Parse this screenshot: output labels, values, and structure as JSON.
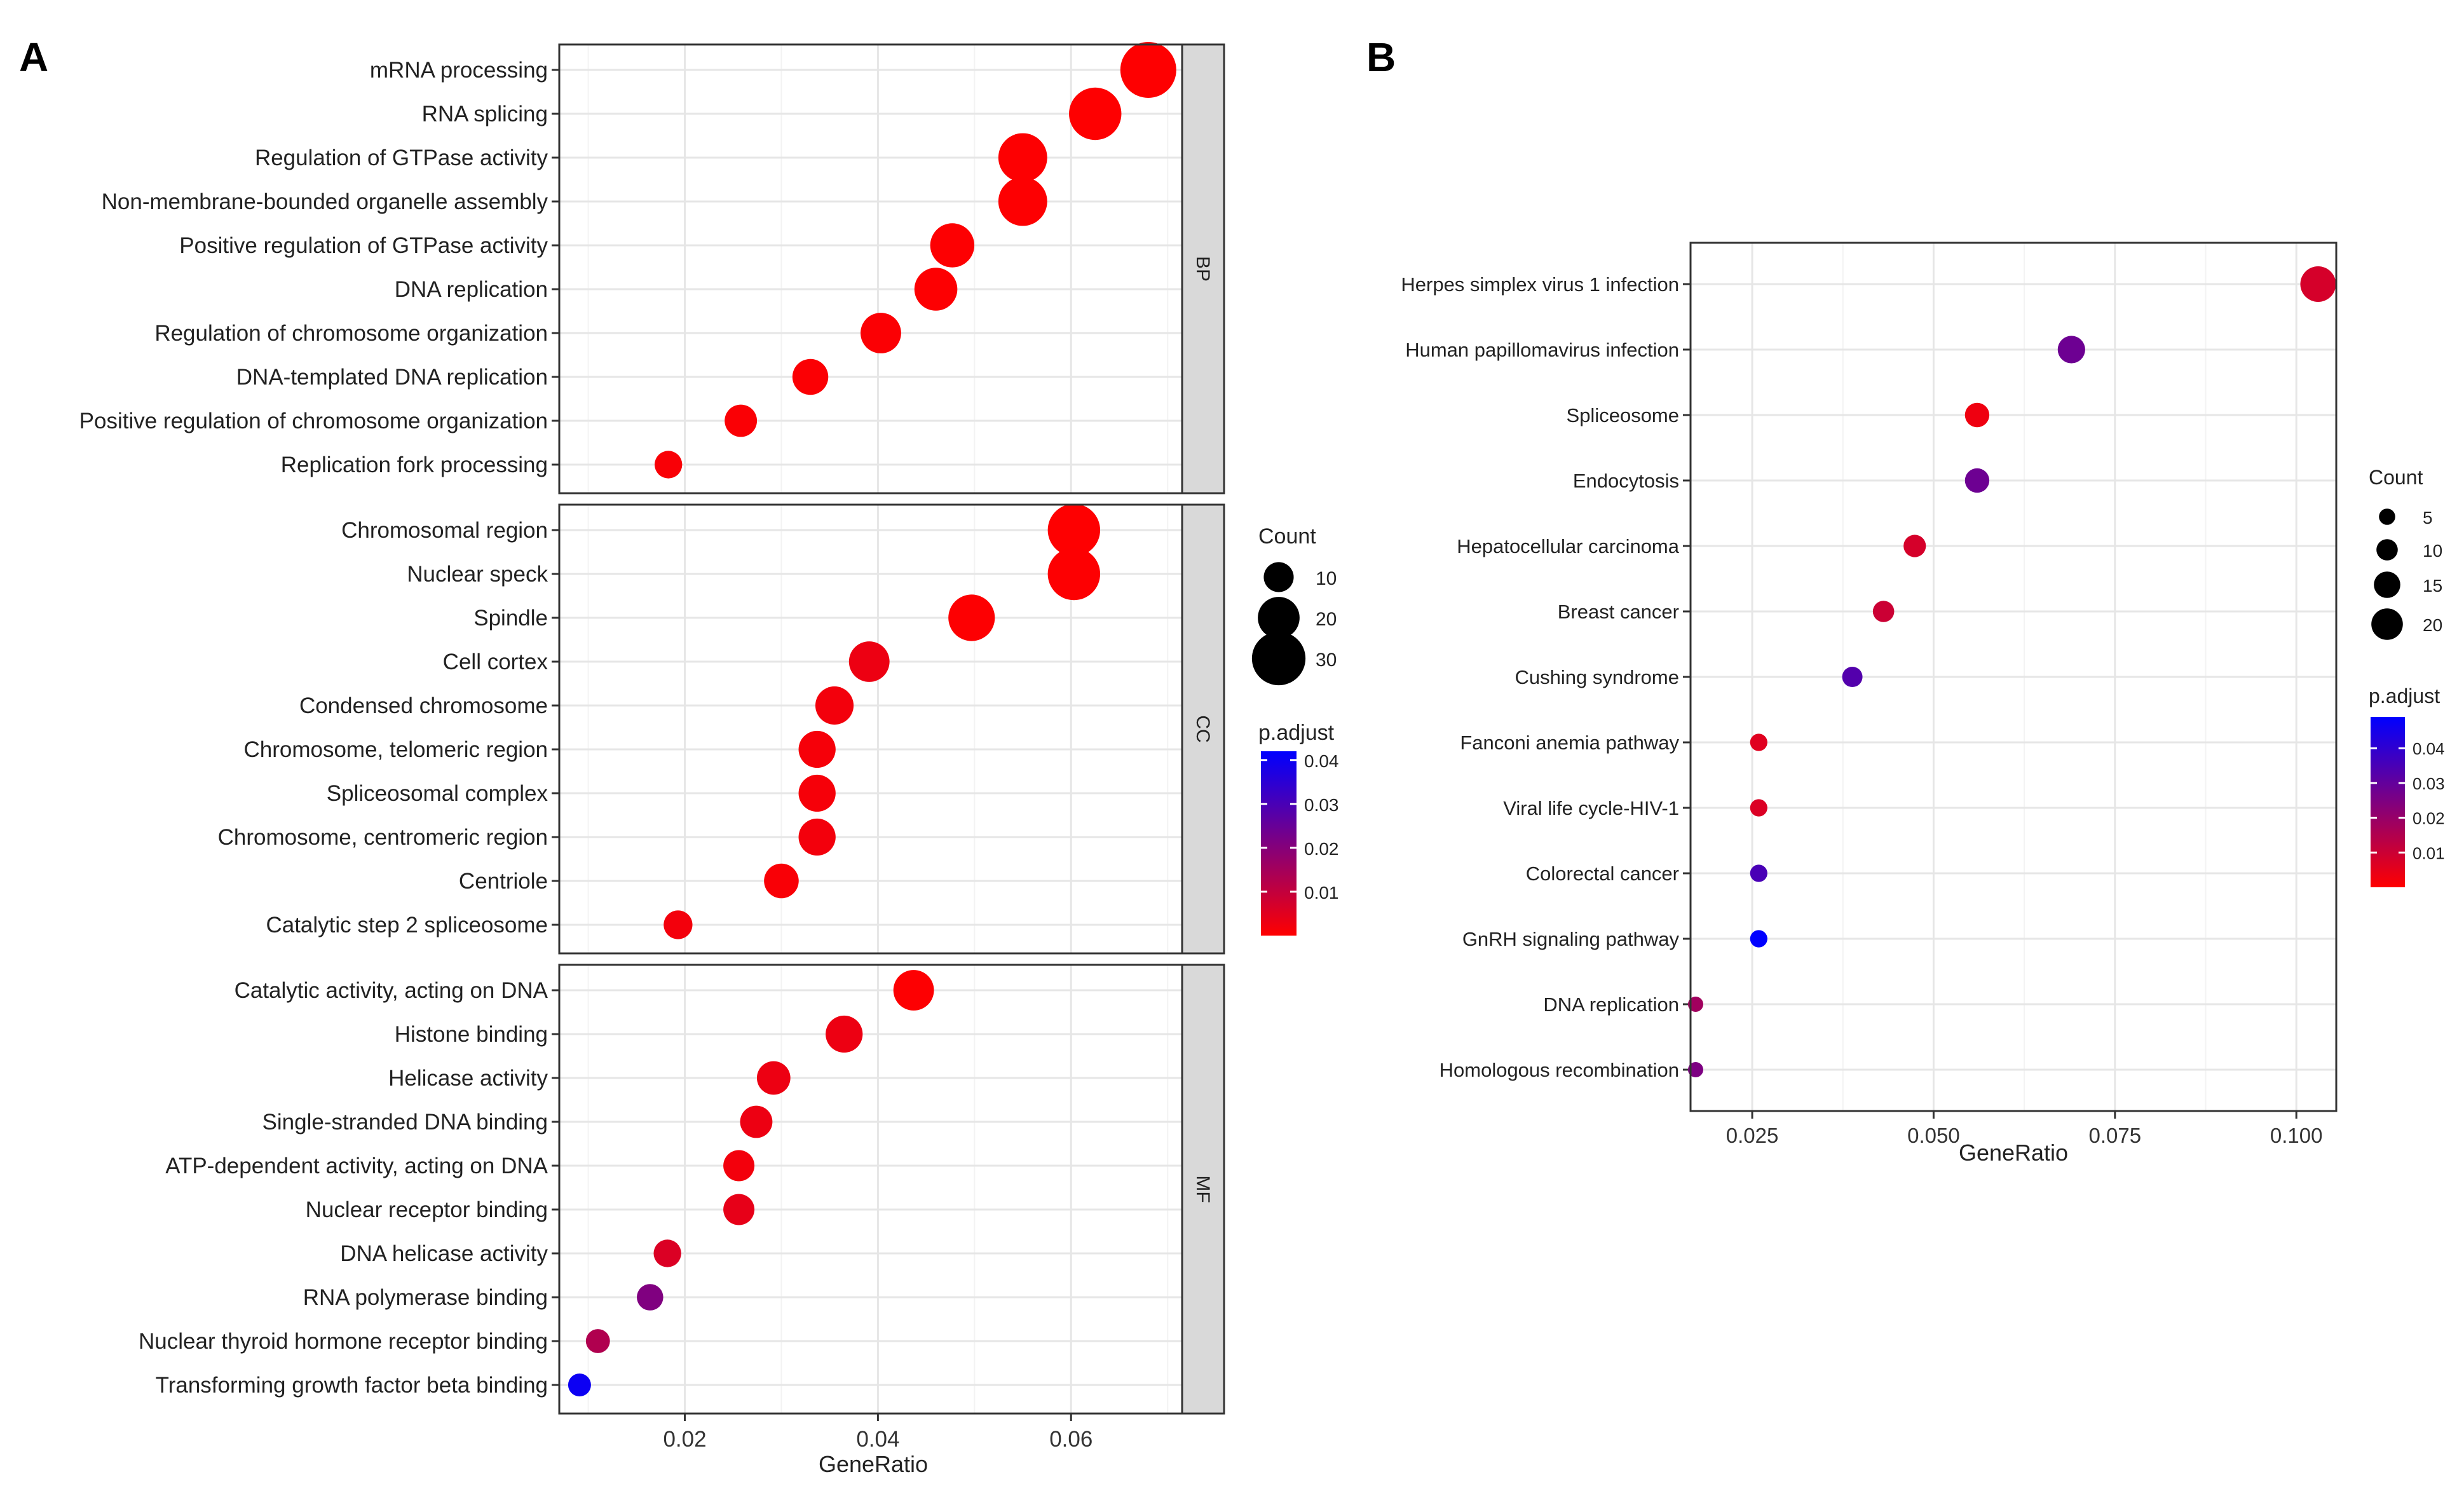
{
  "chart_data": [
    {
      "panel_label": "A",
      "type": "scatter",
      "subtype": "dot plot (GO enrichment, faceted)",
      "xlabel": "GeneRatio",
      "xlim": [
        0.007,
        0.0715
      ],
      "xticks": [
        0.02,
        0.04,
        0.06
      ],
      "xtick_labels": [
        "0.02",
        "0.04",
        "0.06"
      ],
      "grid": true,
      "size_legend": {
        "title": "Count",
        "values": [
          10,
          20,
          30
        ],
        "labels": [
          "10",
          "20",
          "30"
        ]
      },
      "color_legend": {
        "title": "p.adjust",
        "range": [
          0,
          0.042
        ],
        "ticks": [
          0.01,
          0.02,
          0.03,
          0.04
        ],
        "labels": [
          "0.01",
          "0.02",
          "0.03",
          "0.04"
        ],
        "low_color": "#ff0000",
        "high_color": "#0000ff"
      },
      "facets": [
        {
          "name": "BP",
          "terms": [
            {
              "term": "mRNA processing",
              "gene_ratio": 0.068,
              "count": 32,
              "p_adjust": 0.0001
            },
            {
              "term": "RNA splicing",
              "gene_ratio": 0.0625,
              "count": 29,
              "p_adjust": 0.0002
            },
            {
              "term": "Regulation of GTPase activity",
              "gene_ratio": 0.055,
              "count": 26,
              "p_adjust": 0.0003
            },
            {
              "term": "Non-membrane-bounded organelle assembly",
              "gene_ratio": 0.055,
              "count": 26,
              "p_adjust": 0.0003
            },
            {
              "term": "Positive regulation of GTPase activity",
              "gene_ratio": 0.0477,
              "count": 22,
              "p_adjust": 0.0004
            },
            {
              "term": "DNA replication",
              "gene_ratio": 0.046,
              "count": 21,
              "p_adjust": 0.0004
            },
            {
              "term": "Regulation of chromosome organization",
              "gene_ratio": 0.0403,
              "count": 19,
              "p_adjust": 0.0006
            },
            {
              "term": "DNA-templated DNA replication",
              "gene_ratio": 0.033,
              "count": 15,
              "p_adjust": 0.0006
            },
            {
              "term": "Positive regulation of chromosome organization",
              "gene_ratio": 0.0258,
              "count": 12,
              "p_adjust": 0.0008
            },
            {
              "term": "Replication fork processing",
              "gene_ratio": 0.0183,
              "count": 8,
              "p_adjust": 0.001
            }
          ]
        },
        {
          "name": "CC",
          "terms": [
            {
              "term": "Chromosomal region",
              "gene_ratio": 0.0603,
              "count": 29,
              "p_adjust": 0.0002
            },
            {
              "term": "Nuclear speck",
              "gene_ratio": 0.0603,
              "count": 29,
              "p_adjust": 0.0003
            },
            {
              "term": "Spindle",
              "gene_ratio": 0.0497,
              "count": 24,
              "p_adjust": 0.0004
            },
            {
              "term": "Cell cortex",
              "gene_ratio": 0.0391,
              "count": 19,
              "p_adjust": 0.003
            },
            {
              "term": "Condensed chromosome",
              "gene_ratio": 0.0355,
              "count": 17,
              "p_adjust": 0.002
            },
            {
              "term": "Chromosome, telomeric region",
              "gene_ratio": 0.0337,
              "count": 16,
              "p_adjust": 0.0015
            },
            {
              "term": "Spliceosomal complex",
              "gene_ratio": 0.0337,
              "count": 16,
              "p_adjust": 0.0015
            },
            {
              "term": "Chromosome, centromeric region",
              "gene_ratio": 0.0337,
              "count": 16,
              "p_adjust": 0.002
            },
            {
              "term": "Centriole",
              "gene_ratio": 0.03,
              "count": 14,
              "p_adjust": 0.001
            },
            {
              "term": "Catalytic step 2 spliceosome",
              "gene_ratio": 0.0193,
              "count": 9,
              "p_adjust": 0.002
            }
          ]
        },
        {
          "name": "MF",
          "terms": [
            {
              "term": "Catalytic activity, acting on DNA",
              "gene_ratio": 0.0437,
              "count": 19,
              "p_adjust": 0.0004
            },
            {
              "term": "Histone binding",
              "gene_ratio": 0.0365,
              "count": 16,
              "p_adjust": 0.003
            },
            {
              "term": "Helicase activity",
              "gene_ratio": 0.0292,
              "count": 13,
              "p_adjust": 0.003
            },
            {
              "term": "Single-stranded DNA binding",
              "gene_ratio": 0.0274,
              "count": 12,
              "p_adjust": 0.003
            },
            {
              "term": "ATP-dependent activity, acting on DNA",
              "gene_ratio": 0.0256,
              "count": 11,
              "p_adjust": 0.002
            },
            {
              "term": "Nuclear receptor binding",
              "gene_ratio": 0.0256,
              "count": 11,
              "p_adjust": 0.004
            },
            {
              "term": "DNA helicase activity",
              "gene_ratio": 0.0182,
              "count": 8,
              "p_adjust": 0.006
            },
            {
              "term": "RNA polymerase binding",
              "gene_ratio": 0.0164,
              "count": 7,
              "p_adjust": 0.021
            },
            {
              "term": "Nuclear thyroid hormone receptor binding",
              "gene_ratio": 0.011,
              "count": 5,
              "p_adjust": 0.013
            },
            {
              "term": "Transforming growth factor beta binding",
              "gene_ratio": 0.0091,
              "count": 4,
              "p_adjust": 0.04
            }
          ]
        }
      ]
    },
    {
      "panel_label": "B",
      "type": "scatter",
      "subtype": "dot plot (KEGG enrichment)",
      "xlabel": "GeneRatio",
      "xlim": [
        0.0165,
        0.1055
      ],
      "xticks": [
        0.025,
        0.05,
        0.075,
        0.1
      ],
      "xtick_labels": [
        "0.025",
        "0.050",
        "0.075",
        "0.100"
      ],
      "grid": true,
      "size_legend": {
        "title": "Count",
        "values": [
          5,
          10,
          15,
          20
        ],
        "labels": [
          "5",
          "10",
          "15",
          "20"
        ]
      },
      "color_legend": {
        "title": "p.adjust",
        "range": [
          0,
          0.049
        ],
        "ticks": [
          0.01,
          0.02,
          0.03,
          0.04
        ],
        "labels": [
          "0.01",
          "0.02",
          "0.03",
          "0.04"
        ],
        "low_color": "#ff0000",
        "high_color": "#0000ff"
      },
      "terms": [
        {
          "term": "Herpes simplex virus 1 infection",
          "gene_ratio": 0.103,
          "count": 24,
          "p_adjust": 0.008
        },
        {
          "term": "Human papillomavirus infection",
          "gene_ratio": 0.069,
          "count": 16,
          "p_adjust": 0.028
        },
        {
          "term": "Spliceosome",
          "gene_ratio": 0.056,
          "count": 13,
          "p_adjust": 0.003
        },
        {
          "term": "Endocytosis",
          "gene_ratio": 0.056,
          "count": 13,
          "p_adjust": 0.028
        },
        {
          "term": "Hepatocellular carcinoma",
          "gene_ratio": 0.0474,
          "count": 11,
          "p_adjust": 0.008
        },
        {
          "term": "Breast cancer",
          "gene_ratio": 0.0431,
          "count": 10,
          "p_adjust": 0.01
        },
        {
          "term": "Cushing syndrome",
          "gene_ratio": 0.0388,
          "count": 9,
          "p_adjust": 0.033
        },
        {
          "term": "Fanconi anemia pathway",
          "gene_ratio": 0.0259,
          "count": 6,
          "p_adjust": 0.006
        },
        {
          "term": "Viral life cycle-HIV-1",
          "gene_ratio": 0.0259,
          "count": 6,
          "p_adjust": 0.007
        },
        {
          "term": "Colorectal cancer",
          "gene_ratio": 0.0259,
          "count": 6,
          "p_adjust": 0.035
        },
        {
          "term": "GnRH signaling pathway",
          "gene_ratio": 0.0259,
          "count": 6,
          "p_adjust": 0.049
        },
        {
          "term": "DNA replication",
          "gene_ratio": 0.0172,
          "count": 4,
          "p_adjust": 0.018
        },
        {
          "term": "Homologous recombination",
          "gene_ratio": 0.0172,
          "count": 4,
          "p_adjust": 0.025
        }
      ]
    }
  ]
}
